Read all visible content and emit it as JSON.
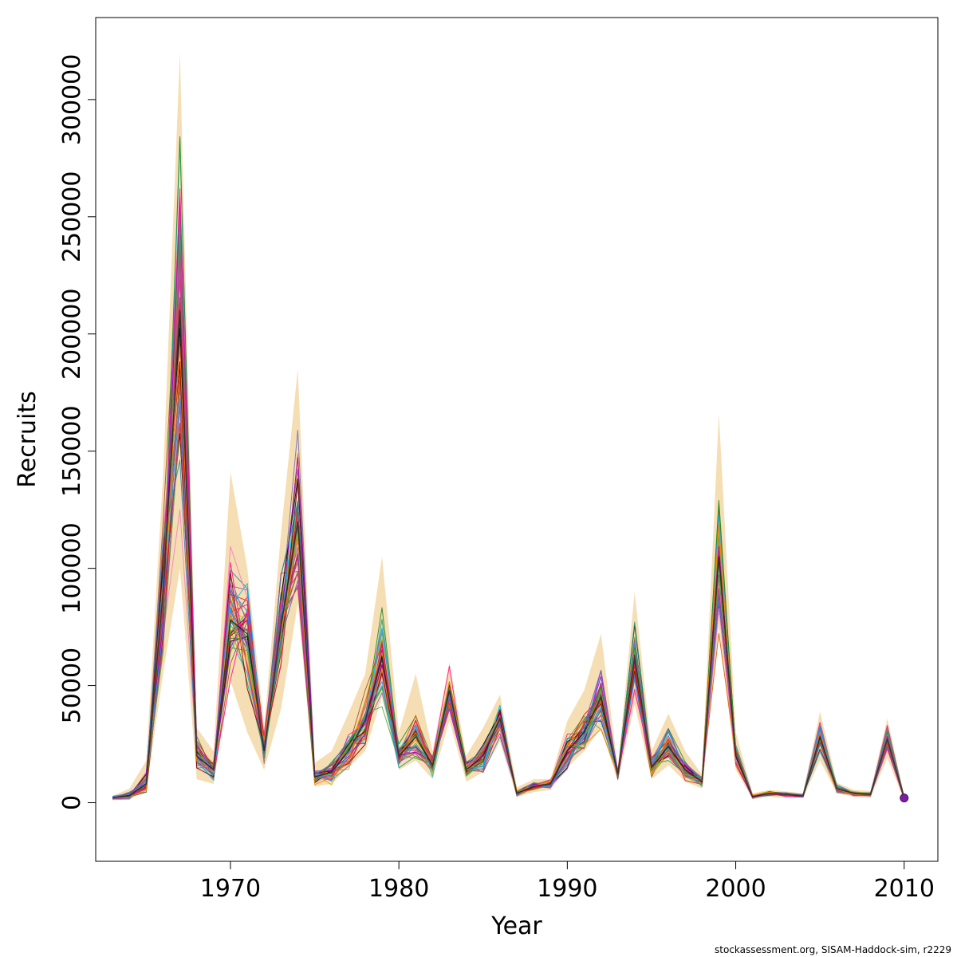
{
  "chart_data": {
    "type": "line",
    "xlabel": "Year",
    "ylabel": "Recruits",
    "xlim": [
      1962,
      2012
    ],
    "ylim": [
      -25000,
      335000
    ],
    "x_ticks": [
      1970,
      1980,
      1990,
      2000,
      2010
    ],
    "y_ticks": [
      0,
      50000,
      100000,
      150000,
      200000,
      250000,
      300000
    ],
    "x_tick_labels": [
      "1970",
      "1980",
      "1990",
      "2000",
      "2010"
    ],
    "y_tick_labels": [
      "0",
      "50000",
      "100000",
      "150000",
      "200000",
      "250000",
      "300000"
    ],
    "grid": false,
    "band_color": "#f5deb3",
    "years": [
      1963,
      1964,
      1965,
      1966,
      1967,
      1968,
      1969,
      1970,
      1971,
      1972,
      1973,
      1974,
      1975,
      1976,
      1977,
      1978,
      1979,
      1980,
      1981,
      1982,
      1983,
      1984,
      1985,
      1986,
      1987,
      1988,
      1989,
      1990,
      1991,
      1992,
      1993,
      1994,
      1995,
      1996,
      1997,
      1998,
      1999,
      2000,
      2001,
      2002,
      2003,
      2004,
      2005,
      2006,
      2007,
      2008,
      2009,
      2010
    ],
    "median": [
      2000,
      3000,
      8000,
      90000,
      210000,
      20000,
      14000,
      78000,
      72000,
      22000,
      75000,
      120000,
      11000,
      13000,
      22000,
      35000,
      62000,
      20000,
      28000,
      16000,
      48000,
      14000,
      20000,
      36000,
      4000,
      7000,
      8000,
      22000,
      30000,
      45000,
      12000,
      62000,
      15000,
      24000,
      14000,
      9000,
      105000,
      20000,
      2500,
      4000,
      3500,
      3000,
      28000,
      6000,
      4000,
      3500,
      27000,
      2000
    ],
    "band_upper": [
      3000,
      6000,
      18000,
      140000,
      320000,
      32000,
      22000,
      141000,
      100000,
      32000,
      115000,
      185000,
      17000,
      22000,
      38000,
      55000,
      105000,
      30000,
      55000,
      22000,
      60000,
      20000,
      32000,
      46000,
      6500,
      10000,
      10000,
      35000,
      48000,
      72000,
      15000,
      90000,
      22000,
      38000,
      22000,
      12000,
      166000,
      30000,
      4000,
      5500,
      4800,
      4000,
      39000,
      8500,
      5500,
      5000,
      36000,
      3000
    ],
    "band_lower": [
      1000,
      1500,
      5000,
      55000,
      100000,
      10000,
      8000,
      52000,
      30000,
      14000,
      40000,
      85000,
      7000,
      8000,
      15000,
      22000,
      45000,
      14000,
      18000,
      10000,
      35000,
      9000,
      13000,
      26000,
      2500,
      4500,
      5500,
      15000,
      22000,
      32000,
      9000,
      42000,
      10000,
      16000,
      9000,
      6000,
      75000,
      14000,
      1500,
      2500,
      2200,
      2000,
      18000,
      4000,
      2500,
      2200,
      19000,
      1000
    ],
    "n_series": 45,
    "series_colors": [
      "#e41a1c",
      "#377eb8",
      "#4daf4a",
      "#984ea3",
      "#ff7f00",
      "#a65628",
      "#f781bf",
      "#000000",
      "#1b9e77",
      "#d95f02",
      "#7570b3",
      "#e7298a",
      "#66a61e",
      "#e6ab02",
      "#00bfff",
      "#8b0000",
      "#228b22",
      "#9400d3",
      "#ff1493",
      "#1e90ff"
    ],
    "endpoint": {
      "year": 2010,
      "value": 2000,
      "color": "#7b1fa2"
    }
  },
  "footer": {
    "credit": "stockassessment.org, SISAM-Haddock-sim, r2229"
  }
}
